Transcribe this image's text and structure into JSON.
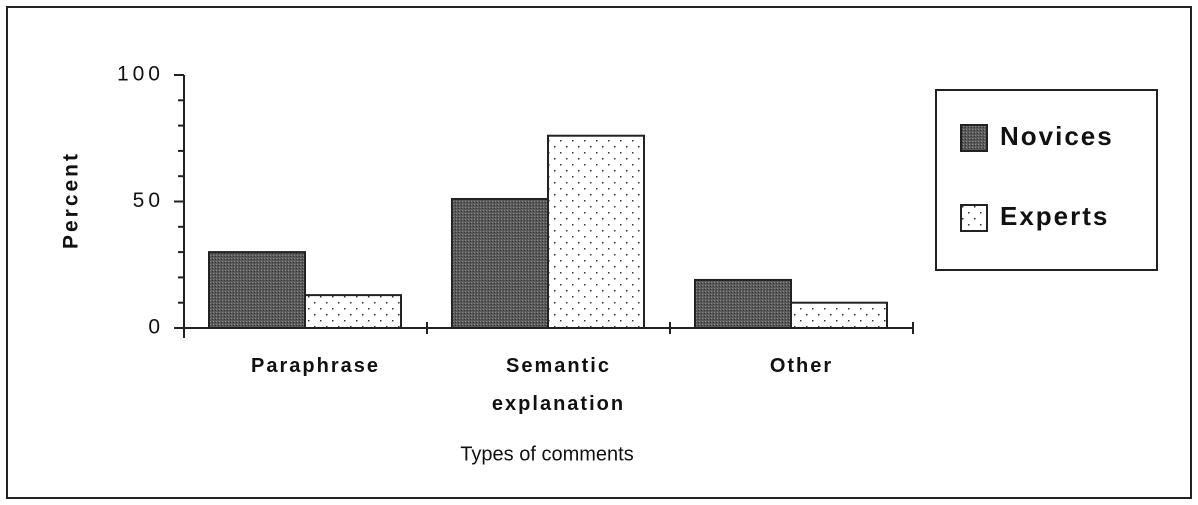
{
  "chart_data": {
    "type": "bar",
    "ylabel": "Percent",
    "xlabel": "Types of comments",
    "categories": [
      "Paraphrase",
      "Semantic explanation",
      "Other"
    ],
    "series": [
      {
        "name": "Novices",
        "color": "#5a5a5a",
        "values": [
          30,
          51,
          19
        ]
      },
      {
        "name": "Experts",
        "color": "#ffffff",
        "values": [
          13,
          76,
          10
        ]
      }
    ],
    "ylim": [
      0,
      100
    ],
    "yticks": [
      0,
      50,
      100
    ],
    "yminorticks": [
      10,
      20,
      30,
      40,
      60,
      70,
      80,
      90
    ],
    "legend": "right"
  }
}
